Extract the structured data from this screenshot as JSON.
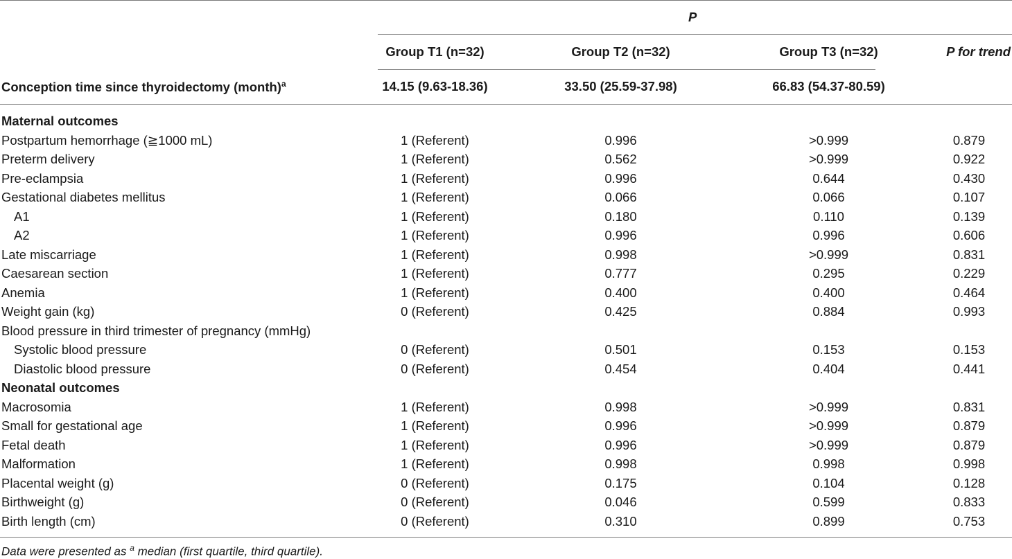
{
  "table": {
    "header": {
      "p_label": "P",
      "group_t1": "Group T1 (n=32)",
      "group_t2": "Group T2 (n=32)",
      "group_t3": "Group T3 (n=32)",
      "p_trend": "P for trend",
      "conception_label": "Conception time since thyroidectomy (month)",
      "conception_sup": "a",
      "conception_t1": "14.15 (9.63-18.36)",
      "conception_t2": "33.50 (25.59-37.98)",
      "conception_t3": "66.83 (54.37-80.59)"
    },
    "sections": [
      {
        "title": "Maternal outcomes",
        "rows": [
          {
            "label": "Postpartum hemorrhage (≧1000 mL)",
            "indent": false,
            "t1": "1 (Referent)",
            "t2": "0.996",
            "t3": ">0.999",
            "trend": "0.879"
          },
          {
            "label": "Preterm delivery",
            "indent": false,
            "t1": "1 (Referent)",
            "t2": "0.562",
            "t3": ">0.999",
            "trend": "0.922"
          },
          {
            "label": "Pre-eclampsia",
            "indent": false,
            "t1": "1 (Referent)",
            "t2": "0.996",
            "t3": "0.644",
            "trend": "0.430"
          },
          {
            "label": "Gestational diabetes mellitus",
            "indent": false,
            "t1": "1 (Referent)",
            "t2": "0.066",
            "t3": "0.066",
            "trend": "0.107"
          },
          {
            "label": "A1",
            "indent": true,
            "t1": "1 (Referent)",
            "t2": "0.180",
            "t3": "0.110",
            "trend": "0.139"
          },
          {
            "label": "A2",
            "indent": true,
            "t1": "1 (Referent)",
            "t2": "0.996",
            "t3": "0.996",
            "trend": "0.606"
          },
          {
            "label": "Late miscarriage",
            "indent": false,
            "t1": "1 (Referent)",
            "t2": "0.998",
            "t3": ">0.999",
            "trend": "0.831"
          },
          {
            "label": "Caesarean section",
            "indent": false,
            "t1": "1 (Referent)",
            "t2": "0.777",
            "t3": "0.295",
            "trend": "0.229"
          },
          {
            "label": "Anemia",
            "indent": false,
            "t1": "1 (Referent)",
            "t2": "0.400",
            "t3": "0.400",
            "trend": "0.464"
          },
          {
            "label": "Weight gain (kg)",
            "indent": false,
            "t1": "0 (Referent)",
            "t2": "0.425",
            "t3": "0.884",
            "trend": "0.993"
          },
          {
            "label": "Blood pressure in third trimester of pregnancy (mmHg)",
            "indent": false,
            "t1": "",
            "t2": "",
            "t3": "",
            "trend": ""
          },
          {
            "label": "Systolic blood pressure",
            "indent": true,
            "t1": "0 (Referent)",
            "t2": "0.501",
            "t3": "0.153",
            "trend": "0.153"
          },
          {
            "label": "Diastolic blood pressure",
            "indent": true,
            "t1": "0 (Referent)",
            "t2": "0.454",
            "t3": "0.404",
            "trend": "0.441"
          }
        ]
      },
      {
        "title": "Neonatal outcomes",
        "rows": [
          {
            "label": "Macrosomia",
            "indent": false,
            "t1": "1 (Referent)",
            "t2": "0.998",
            "t3": ">0.999",
            "trend": "0.831"
          },
          {
            "label": "Small for gestational age",
            "indent": false,
            "t1": "1 (Referent)",
            "t2": "0.996",
            "t3": ">0.999",
            "trend": "0.879"
          },
          {
            "label": "Fetal death",
            "indent": false,
            "t1": "1 (Referent)",
            "t2": "0.996",
            "t3": ">0.999",
            "trend": "0.879"
          },
          {
            "label": "Malformation",
            "indent": false,
            "t1": "1 (Referent)",
            "t2": "0.998",
            "t3": "0.998",
            "trend": "0.998"
          },
          {
            "label": "Placental weight (g)",
            "indent": false,
            "t1": "0 (Referent)",
            "t2": "0.175",
            "t3": "0.104",
            "trend": "0.128"
          },
          {
            "label": "Birthweight (g)",
            "indent": false,
            "t1": "0 (Referent)",
            "t2": "0.046",
            "t3": "0.599",
            "trend": "0.833"
          },
          {
            "label": "Birth length (cm)",
            "indent": false,
            "t1": "0 (Referent)",
            "t2": "0.310",
            "t3": "0.899",
            "trend": "0.753"
          }
        ]
      }
    ],
    "footnote": {
      "before": "Data were presented as ",
      "sup": "a",
      "after": " median (first quartile, third quartile)."
    }
  }
}
